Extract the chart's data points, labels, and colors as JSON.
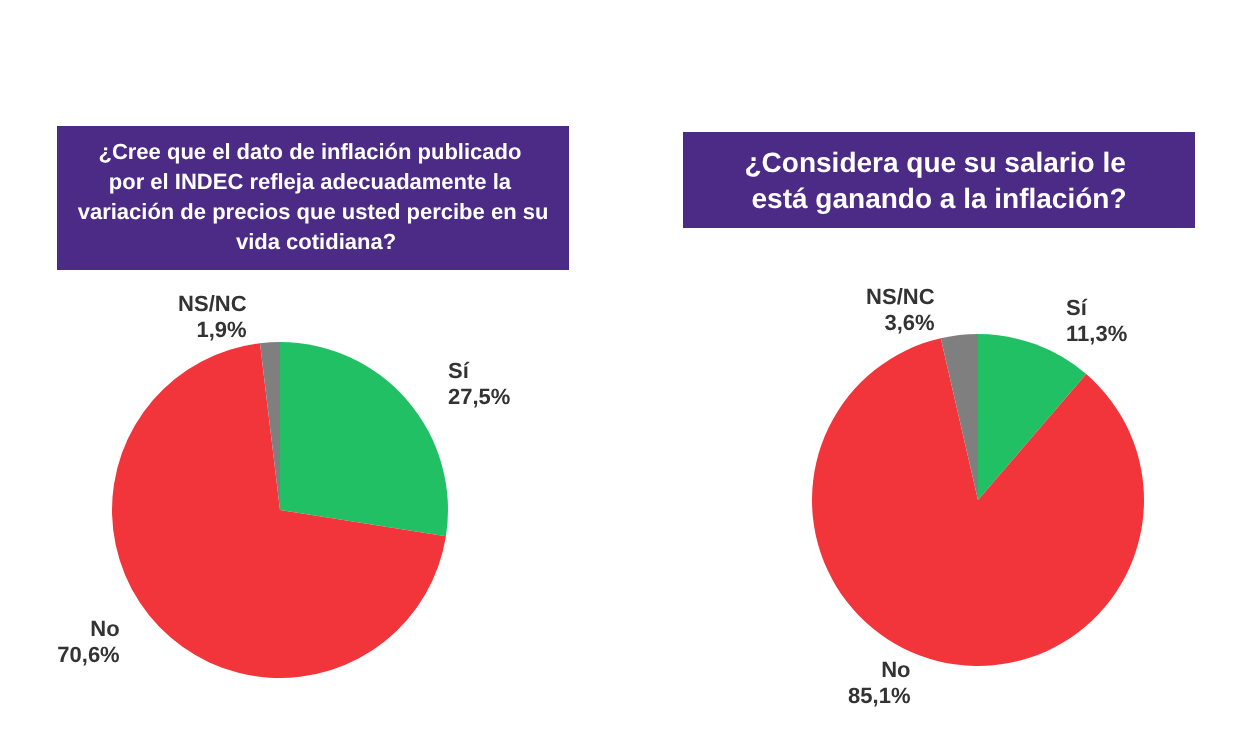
{
  "chart_data": [
    {
      "type": "pie",
      "title": "¿Cree que el dato de inflación publicado por el INDEC refleja adecuadamente la variación de precios que usted percibe en su vida cotidiana?",
      "categories": [
        "Sí",
        "No",
        "NS/NC"
      ],
      "values": [
        27.5,
        70.6,
        1.9
      ],
      "value_labels": [
        "27,5%",
        "70,6%",
        "1,9%"
      ],
      "colors": [
        "#22c064",
        "#f2353a",
        "#7f7f7f"
      ],
      "legend": false
    },
    {
      "type": "pie",
      "title": "¿Considera que su salario le está ganando a la inflación?",
      "categories": [
        "Sí",
        "No",
        "NS/NC"
      ],
      "values": [
        11.3,
        85.1,
        3.6
      ],
      "value_labels": [
        "11,3%",
        "85,1%",
        "3,6%"
      ],
      "colors": [
        "#22c064",
        "#f2353a",
        "#7f7f7f"
      ],
      "legend": false
    }
  ]
}
